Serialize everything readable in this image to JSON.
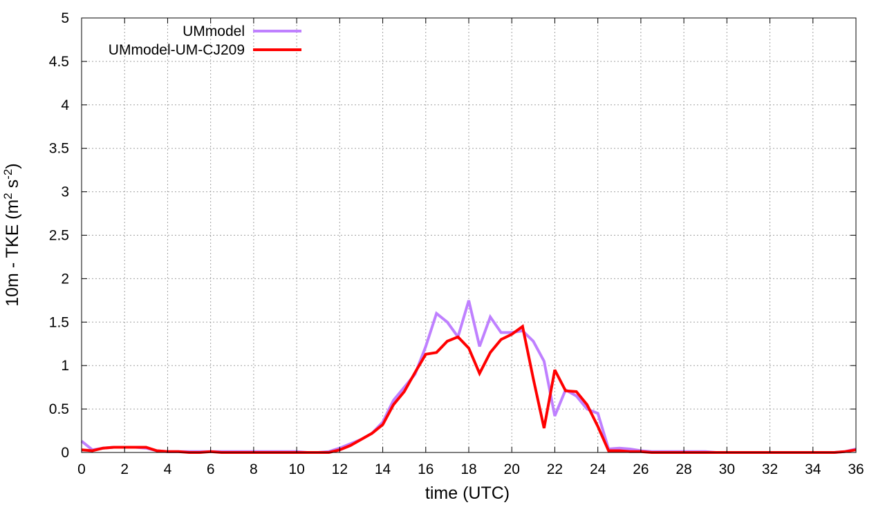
{
  "chart_data": {
    "type": "line",
    "xlabel": "time (UTC)",
    "ylabel": {
      "main": "10m - TKE (m",
      "sup1": "2",
      "mid": " s",
      "sup2": "-2",
      "end": ")"
    },
    "xlim": [
      0,
      36
    ],
    "ylim": [
      0,
      5
    ],
    "xticks": [
      "0",
      "2",
      "4",
      "6",
      "8",
      "10",
      "12",
      "14",
      "16",
      "18",
      "20",
      "22",
      "24",
      "26",
      "28",
      "30",
      "32",
      "34",
      "36"
    ],
    "yticks": [
      "0",
      "0.5",
      "1",
      "1.5",
      "2",
      "2.5",
      "3",
      "3.5",
      "4",
      "4.5",
      "5"
    ],
    "grid": true,
    "legend_position": "top-left",
    "x": [
      0,
      0.5,
      1,
      1.5,
      2,
      2.5,
      3,
      3.5,
      4,
      4.5,
      5,
      5.5,
      6,
      6.5,
      7,
      7.5,
      8,
      8.5,
      9,
      9.5,
      10,
      10.5,
      11,
      11.5,
      12,
      12.5,
      13,
      13.5,
      14,
      14.5,
      15,
      15.5,
      16,
      16.5,
      17,
      17.5,
      18,
      18.5,
      19,
      19.5,
      20,
      20.5,
      21,
      21.5,
      22,
      22.5,
      23,
      23.5,
      24,
      24.5,
      25,
      25.5,
      26,
      26.5,
      27,
      27.5,
      28,
      28.5,
      29,
      29.5,
      30,
      30.5,
      31,
      31.5,
      32,
      32.5,
      33,
      33.5,
      34,
      34.5,
      35,
      35.5,
      36
    ],
    "series": [
      {
        "name": "UMmodel",
        "color": "#bf80ff",
        "values": [
          0.13,
          0.03,
          0.05,
          0.06,
          0.06,
          0.06,
          0.05,
          0.02,
          0.01,
          0.01,
          0.01,
          0.01,
          0.01,
          0.01,
          0.01,
          0.01,
          0.01,
          0.01,
          0.01,
          0.01,
          0.01,
          0.0,
          0.0,
          0.01,
          0.05,
          0.1,
          0.15,
          0.22,
          0.35,
          0.6,
          0.75,
          0.9,
          1.22,
          1.6,
          1.5,
          1.33,
          1.75,
          1.22,
          1.56,
          1.38,
          1.38,
          1.4,
          1.28,
          1.05,
          0.42,
          0.72,
          0.65,
          0.5,
          0.45,
          0.04,
          0.05,
          0.04,
          0.02,
          0.01,
          0.01,
          0.01,
          0.01,
          0.01,
          0.01,
          0.0,
          0.0,
          0.0,
          0.0,
          0.0,
          0.0,
          0.0,
          0.0,
          0.0,
          0.0,
          0.0,
          0.0,
          0.01,
          0.04
        ]
      },
      {
        "name": "UMmodel-UM-CJ209",
        "color": "#ff0000",
        "values": [
          0.03,
          0.02,
          0.05,
          0.06,
          0.06,
          0.06,
          0.06,
          0.02,
          0.01,
          0.01,
          0.0,
          0.0,
          0.01,
          0.0,
          0.0,
          0.0,
          0.0,
          0.0,
          0.0,
          0.0,
          0.0,
          0.0,
          0.0,
          0.0,
          0.03,
          0.08,
          0.15,
          0.22,
          0.32,
          0.55,
          0.7,
          0.92,
          1.13,
          1.15,
          1.28,
          1.33,
          1.2,
          0.91,
          1.15,
          1.3,
          1.36,
          1.45,
          0.85,
          0.28,
          0.95,
          0.71,
          0.7,
          0.55,
          0.3,
          0.02,
          0.02,
          0.01,
          0.01,
          0.0,
          0.0,
          0.0,
          0.0,
          0.0,
          0.0,
          0.0,
          0.0,
          0.0,
          0.0,
          0.0,
          0.0,
          0.0,
          0.0,
          0.0,
          0.0,
          0.0,
          0.0,
          0.01,
          0.03
        ]
      }
    ]
  }
}
